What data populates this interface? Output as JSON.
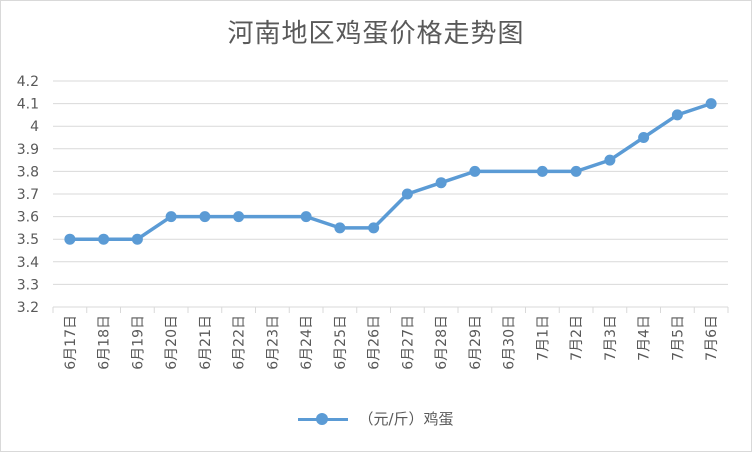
{
  "chart_data": {
    "type": "line",
    "title": "河南地区鸡蛋价格走势图",
    "categories": [
      "6月17日",
      "6月18日",
      "6月19日",
      "6月20日",
      "6月21日",
      "6月22日",
      "6月23日",
      "6月24日",
      "6月25日",
      "6月26日",
      "6月27日",
      "6月28日",
      "6月29日",
      "6月30日",
      "7月1日",
      "7月2日",
      "7月3日",
      "7月4日",
      "7月5日",
      "7月6日"
    ],
    "series": [
      {
        "name": "（元/斤）鸡蛋",
        "values": [
          3.5,
          3.5,
          3.5,
          3.6,
          3.6,
          3.6,
          null,
          3.6,
          3.55,
          3.55,
          3.7,
          3.75,
          3.8,
          null,
          3.8,
          3.8,
          3.85,
          3.95,
          4.05,
          4.1
        ]
      }
    ],
    "yticks": [
      "3.2",
      "3.3",
      "3.4",
      "3.5",
      "3.6",
      "3.7",
      "3.8",
      "3.9",
      "4",
      "4.1",
      "4.2"
    ],
    "ylim": [
      3.2,
      4.2
    ],
    "grid": true,
    "legend": "bottom",
    "color": "#5b9bd5"
  }
}
